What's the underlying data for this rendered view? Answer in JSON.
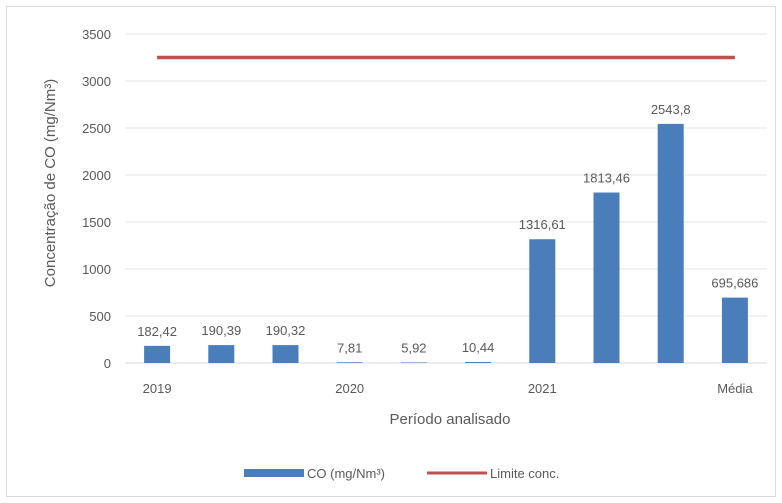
{
  "chart_data": {
    "type": "bar",
    "categories": [
      "2019",
      "",
      "",
      "2020",
      "",
      "",
      "2021",
      "",
      "",
      "Média"
    ],
    "series": [
      {
        "name": "CO (mg/Nm³)",
        "type": "bar",
        "values": [
          182.42,
          190.39,
          190.32,
          7.81,
          5.92,
          10.44,
          1316.61,
          1813.46,
          2543.8,
          695.686
        ],
        "labels": [
          "182,42",
          "190,39",
          "190,32",
          "7,81",
          "5,92",
          "10,44",
          "1316,61",
          "1813,46",
          "2543,8",
          "695,686"
        ],
        "color": "#4a7ebb"
      },
      {
        "name": "Limite conc.",
        "type": "line",
        "value": 3250,
        "color": "#c0504d"
      }
    ],
    "title": "",
    "xlabel": "Período analisado",
    "ylabel": "Concentração de CO (mg/Nm³)",
    "ylim": [
      0,
      3500
    ],
    "yticks": [
      "0",
      "500",
      "1000",
      "1500",
      "2000",
      "2500",
      "3000",
      "3500"
    ],
    "grid": true,
    "legend_position": "bottom"
  }
}
